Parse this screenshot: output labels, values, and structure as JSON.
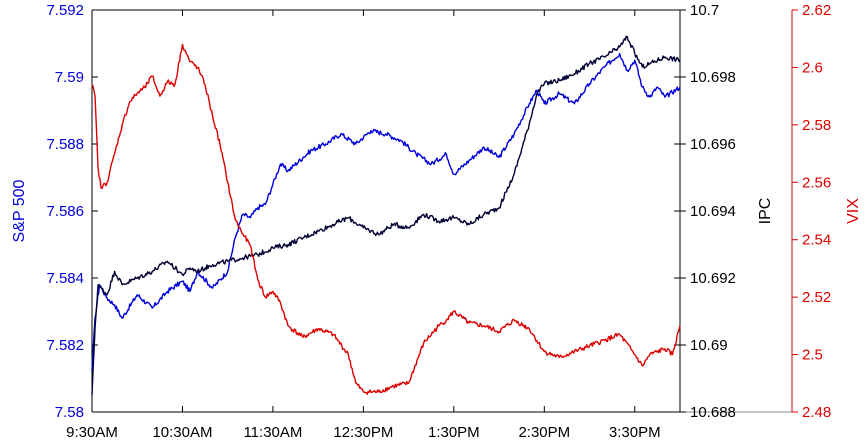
{
  "chart_data": {
    "type": "line",
    "grid": false,
    "legend": "none",
    "x_ticks": [
      "9:30AM",
      "10:30AM",
      "11:30AM",
      "12:30PM",
      "1:30PM",
      "2:30PM",
      "3:30PM"
    ],
    "x_range": [
      "9:30AM",
      "4:00PM"
    ],
    "axes": {
      "left": {
        "label": "S&P 500",
        "color": "#0000dd",
        "range": [
          7.58,
          7.592
        ],
        "ticks": [
          "7.58",
          "7.582",
          "7.584",
          "7.586",
          "7.588",
          "7.59",
          "7.592"
        ]
      },
      "right_inner": {
        "label": "IPC",
        "color": "#000033",
        "range": [
          10.688,
          10.7
        ],
        "ticks": [
          "10.688",
          "10.69",
          "10.692",
          "10.694",
          "10.696",
          "10.698",
          "10.7"
        ]
      },
      "right_outer": {
        "label": "VIX",
        "color": "#dd0000",
        "range": [
          2.48,
          2.62
        ],
        "ticks": [
          "2.48",
          "2.5",
          "2.52",
          "2.54",
          "2.56",
          "2.58",
          "2.6",
          "2.62"
        ]
      }
    },
    "series": [
      {
        "key": "sp500",
        "axis": "left",
        "color": "#0000dd",
        "x": [
          "9:30",
          "9:32",
          "9:35",
          "9:40",
          "9:45",
          "9:50",
          "10:00",
          "10:10",
          "10:20",
          "10:30",
          "10:35",
          "10:40",
          "10:50",
          "11:00",
          "11:05",
          "11:10",
          "11:15",
          "11:20",
          "11:25",
          "11:30",
          "11:35",
          "11:40",
          "11:50",
          "11:55",
          "12:05",
          "12:15",
          "12:25",
          "12:35",
          "12:45",
          "12:55",
          "13:05",
          "13:15",
          "13:25",
          "13:30",
          "13:40",
          "13:50",
          "14:00",
          "14:10",
          "14:20",
          "14:25",
          "14:30",
          "14:40",
          "14:50",
          "15:00",
          "15:10",
          "15:20",
          "15:25",
          "15:30",
          "15:35",
          "15:40",
          "15:45",
          "15:50",
          "16:00"
        ],
        "y": [
          7.5812,
          7.5828,
          7.5838,
          7.5834,
          7.5832,
          7.5828,
          7.5835,
          7.5831,
          7.5836,
          7.5839,
          7.5836,
          7.5842,
          7.5837,
          7.5842,
          7.5852,
          7.5859,
          7.5858,
          7.5861,
          7.5862,
          7.5868,
          7.5874,
          7.5872,
          7.5876,
          7.5878,
          7.588,
          7.5883,
          7.588,
          7.5884,
          7.5883,
          7.5881,
          7.5877,
          7.5874,
          7.5877,
          7.5871,
          7.5875,
          7.5879,
          7.5876,
          7.5883,
          7.5892,
          7.5896,
          7.5892,
          7.5895,
          7.5892,
          7.5898,
          7.5903,
          7.5907,
          7.5902,
          7.5905,
          7.5897,
          7.5894,
          7.5897,
          7.5894,
          7.5897
        ]
      },
      {
        "key": "ipc",
        "axis": "right_inner",
        "color": "#000033",
        "x": [
          "9:30",
          "9:32",
          "9:34",
          "9:40",
          "9:45",
          "9:50",
          "10:00",
          "10:10",
          "10:20",
          "10:30",
          "10:35",
          "10:40",
          "10:50",
          "11:00",
          "11:10",
          "11:20",
          "11:30",
          "11:40",
          "11:50",
          "12:00",
          "12:10",
          "12:20",
          "12:30",
          "12:40",
          "12:50",
          "13:00",
          "13:10",
          "13:20",
          "13:30",
          "13:40",
          "13:50",
          "14:00",
          "14:10",
          "14:20",
          "14:25",
          "14:30",
          "14:40",
          "14:50",
          "15:00",
          "15:10",
          "15:20",
          "15:25",
          "15:30",
          "15:35",
          "15:40",
          "15:50",
          "16:00"
        ],
        "y": [
          10.6885,
          10.6905,
          10.6918,
          10.6915,
          10.6922,
          10.6918,
          10.692,
          10.6922,
          10.6925,
          10.6921,
          10.6923,
          10.6922,
          10.6924,
          10.6925,
          10.6926,
          10.6927,
          10.6929,
          10.693,
          10.6932,
          10.6934,
          10.6936,
          10.6938,
          10.6935,
          10.6933,
          10.6936,
          10.6935,
          10.6939,
          10.6937,
          10.6938,
          10.6936,
          10.6939,
          10.6941,
          10.6951,
          10.6966,
          10.6975,
          10.6978,
          10.6979,
          10.6981,
          10.6984,
          10.6986,
          10.6989,
          10.6992,
          10.6987,
          10.6983,
          10.6984,
          10.6986,
          10.6985
        ]
      },
      {
        "key": "vix",
        "axis": "right_outer",
        "color": "#dd0000",
        "x": [
          "9:30",
          "9:32",
          "9:34",
          "9:36",
          "9:40",
          "9:45",
          "9:50",
          "9:55",
          "10:00",
          "10:05",
          "10:10",
          "10:15",
          "10:20",
          "10:25",
          "10:30",
          "10:35",
          "10:40",
          "10:45",
          "10:50",
          "10:55",
          "11:00",
          "11:05",
          "11:10",
          "11:15",
          "11:20",
          "11:25",
          "11:30",
          "11:35",
          "11:40",
          "11:50",
          "12:00",
          "12:10",
          "12:20",
          "12:25",
          "12:30",
          "12:40",
          "12:50",
          "13:00",
          "13:10",
          "13:20",
          "13:25",
          "13:30",
          "13:40",
          "13:50",
          "14:00",
          "14:10",
          "14:20",
          "14:30",
          "14:40",
          "14:50",
          "15:00",
          "15:10",
          "15:20",
          "15:30",
          "15:35",
          "15:40",
          "15:50",
          "15:55",
          "16:00"
        ],
        "y": [
          2.594,
          2.59,
          2.565,
          2.558,
          2.56,
          2.57,
          2.58,
          2.588,
          2.591,
          2.593,
          2.597,
          2.59,
          2.595,
          2.594,
          2.608,
          2.602,
          2.6,
          2.594,
          2.583,
          2.573,
          2.56,
          2.547,
          2.542,
          2.538,
          2.526,
          2.52,
          2.522,
          2.518,
          2.51,
          2.506,
          2.509,
          2.507,
          2.5,
          2.49,
          2.487,
          2.487,
          2.489,
          2.49,
          2.504,
          2.51,
          2.512,
          2.515,
          2.511,
          2.51,
          2.508,
          2.512,
          2.509,
          2.501,
          2.499,
          2.501,
          2.503,
          2.505,
          2.507,
          2.5,
          2.496,
          2.5,
          2.502,
          2.5,
          2.51
        ]
      }
    ]
  }
}
